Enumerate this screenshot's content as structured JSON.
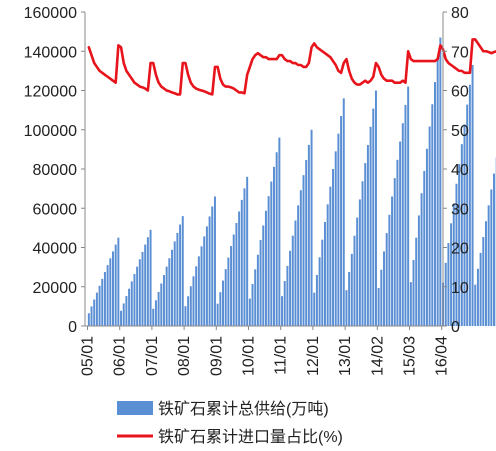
{
  "chart_data": {
    "type": "bar+line",
    "x_tick_labels": [
      "05/01",
      "06/01",
      "07/01",
      "08/01",
      "09/01",
      "10/01",
      "11/01",
      "12/01",
      "13/01",
      "14/02",
      "15/03",
      "16/04"
    ],
    "y_left": {
      "range": [
        0,
        160000
      ],
      "ticks": [
        "0",
        "20000",
        "40000",
        "60000",
        "80000",
        "100000",
        "120000",
        "140000",
        "160000"
      ]
    },
    "y_right": {
      "range": [
        0,
        80
      ],
      "ticks": [
        "0",
        "10",
        "20",
        "30",
        "40",
        "50",
        "60",
        "70",
        "80"
      ]
    },
    "grid": false,
    "legend_position": "bottom",
    "series": [
      {
        "name": "铁矿石累计总供给(万吨)",
        "kind": "bar",
        "axis": "left",
        "color": "#5b8fd4",
        "years": [
          {
            "start": 3000,
            "end": 45000
          },
          {
            "start": 4000,
            "end": 49000
          },
          {
            "start": 4500,
            "end": 56000
          },
          {
            "start": 5000,
            "end": 66000
          },
          {
            "start": 5500,
            "end": 76000
          },
          {
            "start": 6500,
            "end": 96000
          },
          {
            "start": 7500,
            "end": 100000
          },
          {
            "start": 8000,
            "end": 116000
          },
          {
            "start": 9000,
            "end": 120000
          },
          {
            "start": 10000,
            "end": 122000
          },
          {
            "start": 11000,
            "end": 147000
          },
          {
            "start": 12000,
            "end": 133000
          },
          {
            "start": 13000,
            "end": 110000,
            "months": 9
          }
        ]
      },
      {
        "name": "铁矿石累计进口量占比(%)",
        "kind": "line",
        "axis": "right",
        "color": "#e8141c",
        "years": [
          [
            71,
            69,
            67,
            66,
            65,
            64.5,
            64,
            63.5,
            63,
            62.5,
            62,
            71.5
          ],
          [
            71,
            67,
            65,
            64,
            63,
            62,
            61.5,
            61,
            60.8,
            60.5,
            60,
            67
          ],
          [
            67,
            64,
            62,
            61,
            60.5,
            60,
            59.8,
            59.5,
            59.3,
            59,
            59,
            67
          ],
          [
            67,
            64,
            62,
            61,
            60.5,
            60.2,
            60,
            59.8,
            59.5,
            59.2,
            59,
            66
          ],
          [
            66,
            63,
            61.5,
            61,
            61,
            60.8,
            60.5,
            60,
            59.5,
            59.5,
            59.3,
            64
          ],
          [
            66,
            68,
            69,
            69.5,
            69,
            68.5,
            68.5,
            68,
            68,
            68,
            68,
            69
          ],
          [
            69,
            68,
            67.5,
            67.5,
            67,
            67,
            66.5,
            66.5,
            66,
            66,
            67,
            71
          ],
          [
            72,
            71,
            70.5,
            70,
            69.5,
            69,
            68.5,
            67.5,
            66.5,
            65,
            64.5,
            67
          ],
          [
            68,
            65,
            63,
            62,
            61.5,
            61.5,
            62,
            62.5,
            62,
            62.5,
            63.5,
            67
          ],
          [
            66,
            64,
            63,
            62.5,
            62.5,
            62.5,
            62,
            62,
            62,
            62.5,
            62,
            70
          ],
          [
            68,
            67.5,
            67.5,
            67.5,
            67.5,
            67.5,
            67.5,
            67.5,
            67.5,
            67.5,
            68,
            71.5
          ],
          [
            70.5,
            68,
            67,
            66.5,
            66,
            65.5,
            65,
            65,
            64.5,
            64.5,
            64.5,
            73
          ],
          [
            73,
            72,
            71,
            70,
            70,
            69.8,
            69.5,
            69.8,
            70
          ]
        ]
      }
    ]
  }
}
